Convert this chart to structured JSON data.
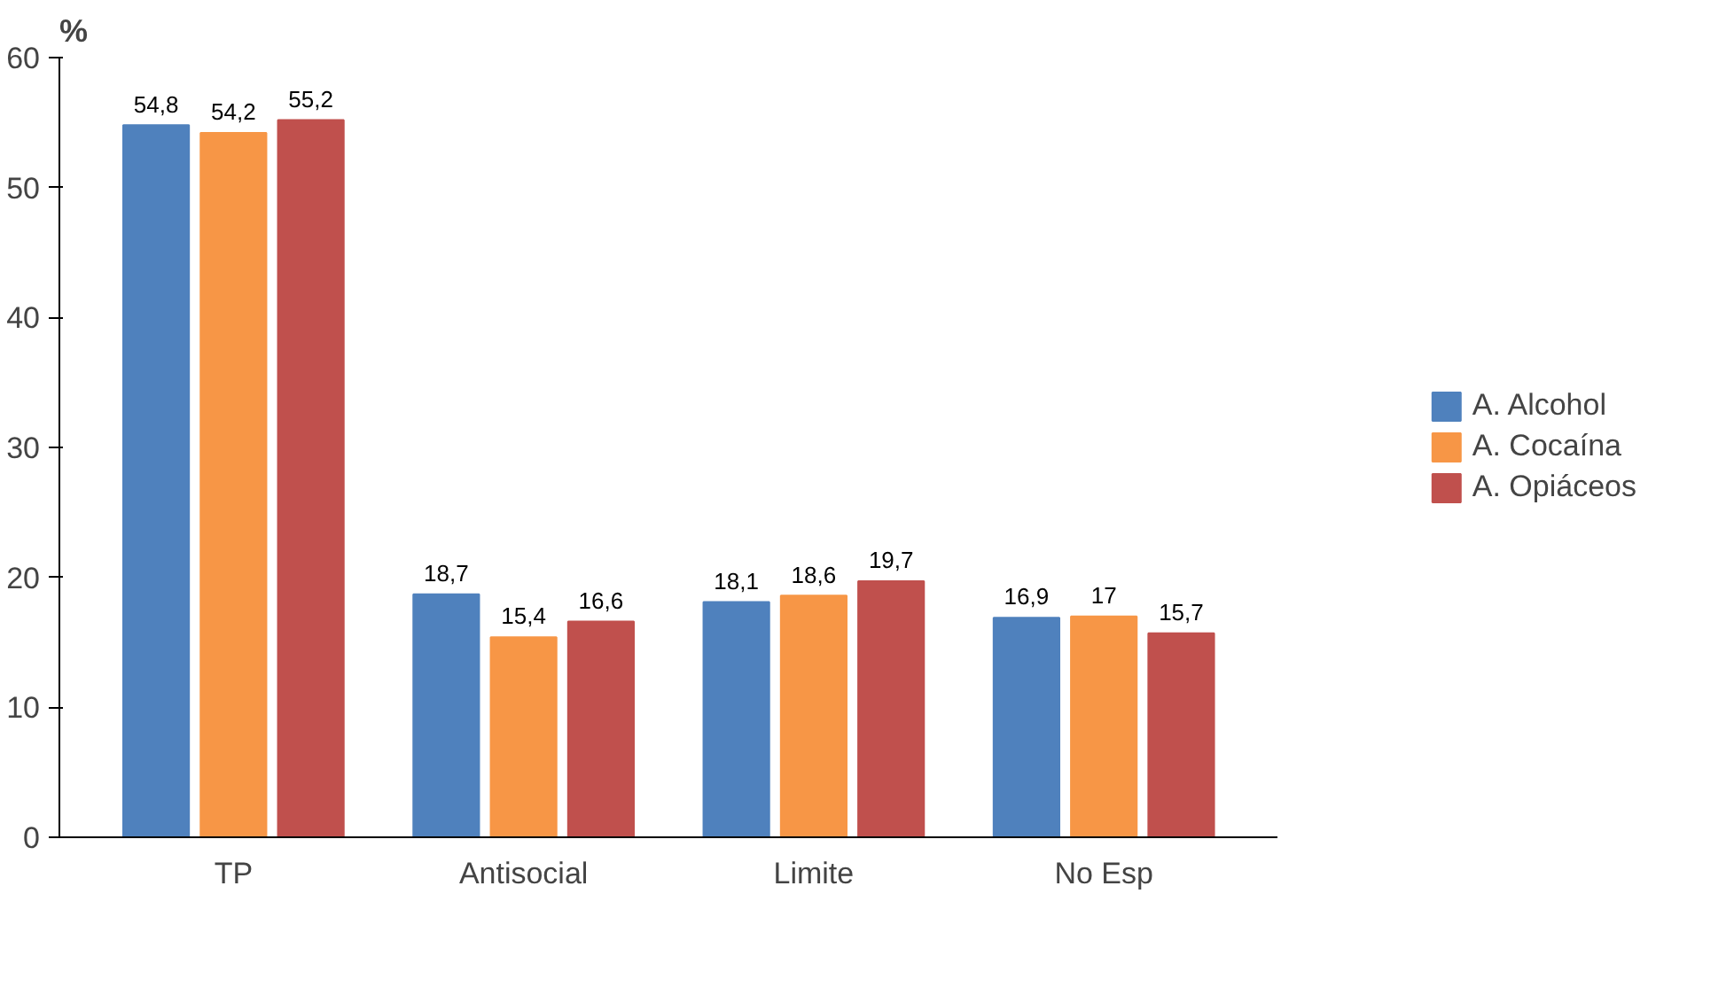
{
  "chart_data": {
    "type": "bar",
    "ylabel": "%",
    "categories": [
      "TP",
      "Antisocial",
      "Limite",
      "No Esp"
    ],
    "series": [
      {
        "name": "A. Alcohol",
        "color": "#4f81bd",
        "values": [
          54.8,
          18.7,
          18.1,
          16.9
        ],
        "value_labels": [
          "54,8",
          "18,7",
          "18,1",
          "16,9"
        ]
      },
      {
        "name": "A. Cocaína",
        "color": "#f79646",
        "values": [
          54.2,
          15.4,
          18.6,
          17
        ],
        "value_labels": [
          "54,2",
          "15,4",
          "18,6",
          "17"
        ]
      },
      {
        "name": "A. Opiáceos",
        "color": "#c0504d",
        "values": [
          55.2,
          16.6,
          19.7,
          15.7
        ],
        "value_labels": [
          "55,2",
          "16,6",
          "19,7",
          "15,7"
        ]
      }
    ],
    "ylim": [
      0,
      60
    ],
    "yticks": [
      0,
      10,
      20,
      30,
      40,
      50,
      60
    ],
    "grid": false,
    "legend": "right"
  }
}
